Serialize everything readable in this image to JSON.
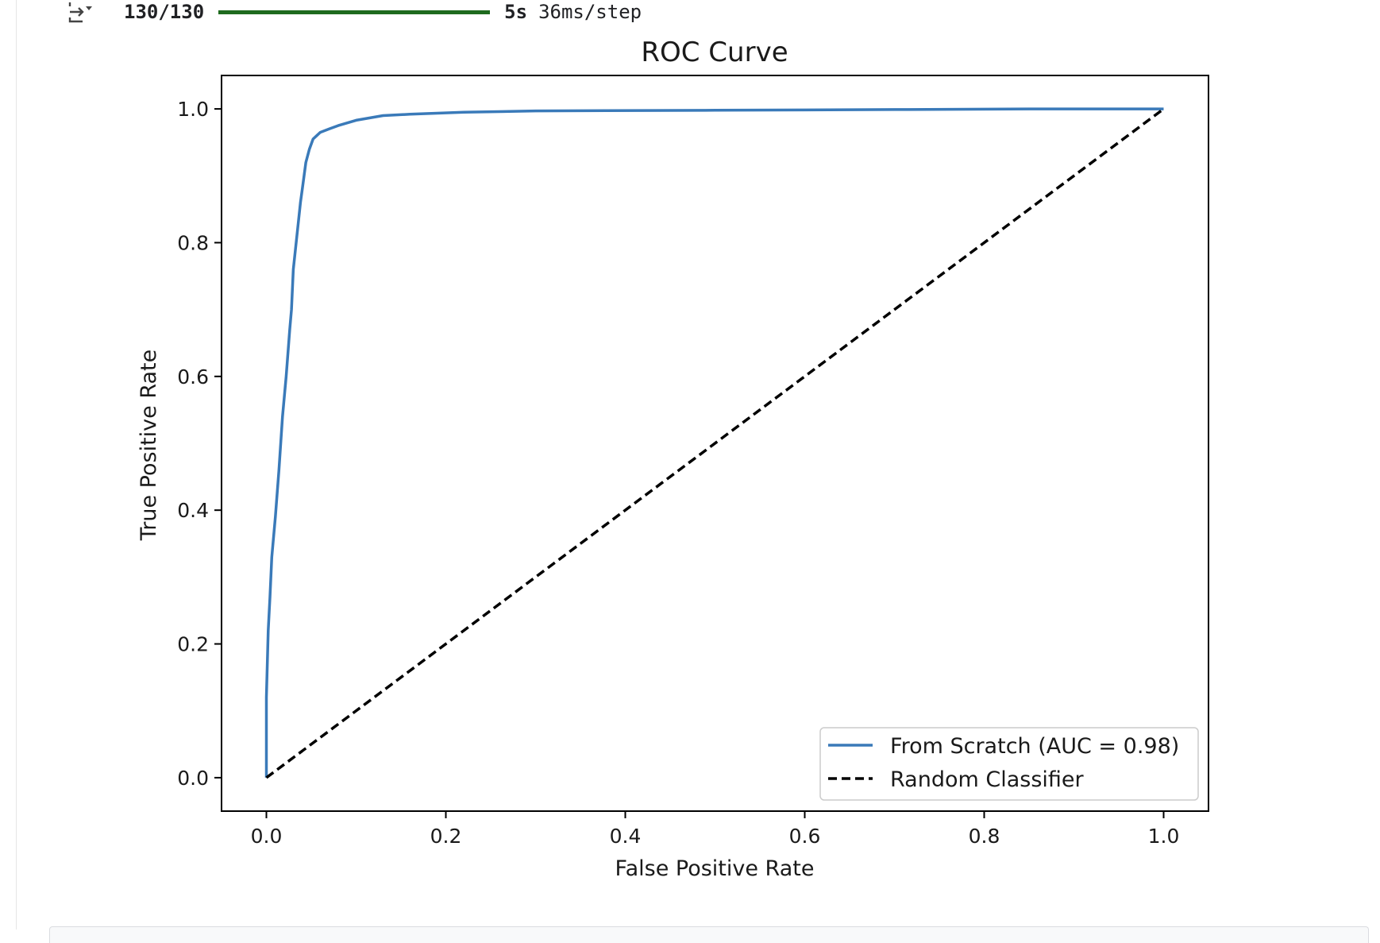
{
  "progress": {
    "count": "130/130",
    "time": "5s",
    "per_step": "36ms/step",
    "fraction": 1.0,
    "bar_color": "#1e6a1e"
  },
  "output_icon": "output-toggle-icon",
  "chart_data": {
    "type": "line",
    "title": "ROC Curve",
    "xlabel": "False Positive Rate",
    "ylabel": "True Positive Rate",
    "xlim": [
      -0.05,
      1.05
    ],
    "ylim": [
      -0.05,
      1.05
    ],
    "xticks": [
      "0.0",
      "0.2",
      "0.4",
      "0.6",
      "0.8",
      "1.0"
    ],
    "yticks": [
      "0.0",
      "0.2",
      "0.4",
      "0.6",
      "0.8",
      "1.0"
    ],
    "grid": false,
    "legend_position": "lower right",
    "series": [
      {
        "name": "From Scratch (AUC = 0.98)",
        "color": "#3a7ab9",
        "style": "solid",
        "x": [
          0.0,
          0.0,
          0.002,
          0.004,
          0.006,
          0.01,
          0.014,
          0.018,
          0.022,
          0.026,
          0.028,
          0.03,
          0.034,
          0.038,
          0.04,
          0.044,
          0.048,
          0.052,
          0.056,
          0.06,
          0.07,
          0.08,
          0.1,
          0.13,
          0.16,
          0.22,
          0.3,
          0.5,
          0.7,
          0.85,
          1.0
        ],
        "y": [
          0.0,
          0.12,
          0.22,
          0.27,
          0.33,
          0.39,
          0.46,
          0.54,
          0.6,
          0.67,
          0.7,
          0.76,
          0.81,
          0.86,
          0.88,
          0.92,
          0.94,
          0.955,
          0.96,
          0.965,
          0.97,
          0.975,
          0.983,
          0.99,
          0.992,
          0.995,
          0.997,
          0.998,
          0.999,
          1.0,
          1.0
        ]
      },
      {
        "name": "Random Classifier",
        "color": "#000000",
        "style": "dashed",
        "x": [
          0.0,
          1.0
        ],
        "y": [
          0.0,
          1.0
        ]
      }
    ]
  }
}
